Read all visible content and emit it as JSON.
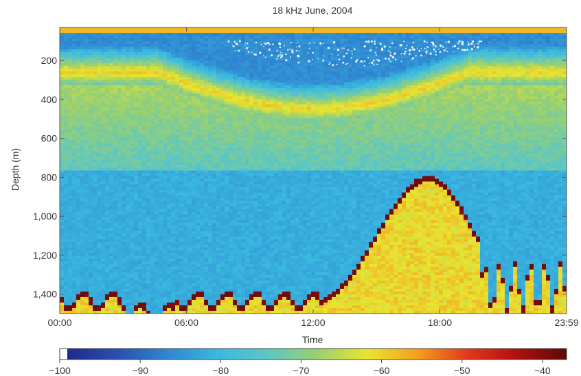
{
  "chart_data": {
    "type": "heatmap",
    "title": "18 kHz June, 2004",
    "xlabel": "Time",
    "ylabel": "Depth (m)",
    "x_ticks": [
      "00:00",
      "06:00",
      "12:00",
      "18:00",
      "23:59"
    ],
    "x_range": [
      "00:00",
      "23:59"
    ],
    "y_ticks": [
      200,
      400,
      600,
      800,
      1000,
      1200,
      1400
    ],
    "y_tick_labels": [
      "200",
      "400",
      "600",
      "800",
      "1,000",
      "1,200",
      "1,400"
    ],
    "y_range": [
      30,
      1500
    ],
    "y_inverted": true,
    "colorbar": {
      "ticks": [
        -100,
        -90,
        -80,
        -70,
        -60,
        -50,
        -40
      ],
      "tick_labels": [
        "−100",
        "−90",
        "−80",
        "−70",
        "−60",
        "−50",
        "−40"
      ],
      "range": [
        -100,
        -37
      ],
      "colors": [
        "#ffffff",
        "#1f2a8a",
        "#2a4fb0",
        "#2f86d0",
        "#3ab8e0",
        "#5cc6c4",
        "#9ad070",
        "#e8e530",
        "#f4a020",
        "#e03a1a",
        "#b01010",
        "#5a0a08"
      ]
    }
  }
}
